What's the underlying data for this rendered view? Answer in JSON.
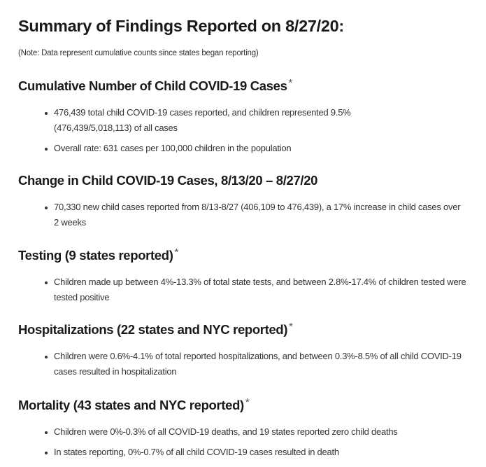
{
  "title": "Summary of Findings Reported on 8/27/20:",
  "note": "(Note: Data represent cumulative counts since states began reporting)",
  "sections": [
    {
      "heading": "Cumulative Number of Child COVID-19 Cases",
      "asterisk": "*",
      "bullets": [
        "476,439 total child COVID-19 cases reported, and children represented 9.5% (476,439/5,018,113) of all cases",
        "Overall rate: 631 cases per 100,000 children in the population"
      ]
    },
    {
      "heading": "Change in Child COVID-19 Cases, 8/13/20 – 8/27/20",
      "asterisk": "",
      "bullets": [
        "70,330 new child cases reported from 8/13-8/27 (406,109 to 476,439), a 17% increase in child cases over 2 weeks"
      ]
    },
    {
      "heading": "Testing (9 states reported)",
      "asterisk": "*",
      "bullets": [
        "Children made up between 4%-13.3% of total state tests, and between 2.8%-17.4% of children tested were tested positive"
      ]
    },
    {
      "heading": "Hospitalizations (22 states and NYC reported)",
      "asterisk": "*",
      "bullets": [
        "Children were 0.6%-4.1% of total reported hospitalizations, and between 0.3%-8.5% of all child COVID-19 cases resulted in hospitalization"
      ]
    },
    {
      "heading": "Mortality (43 states and NYC reported)",
      "asterisk": "*",
      "bullets": [
        "Children were 0%-0.3% of all COVID-19 deaths, and 19 states reported zero child deaths",
        "In states reporting, 0%-0.7% of all child COVID-19 cases resulted in death"
      ]
    }
  ]
}
